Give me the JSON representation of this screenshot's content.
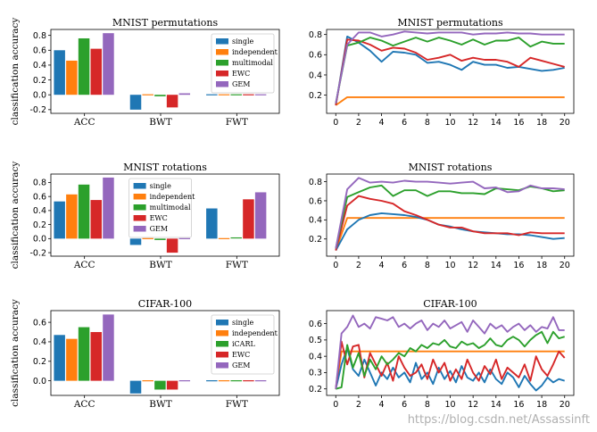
{
  "colors": {
    "single": "#1f77b4",
    "independent": "#ff7f0e",
    "multimodal": "#2ca02c",
    "ewc": "#d62728",
    "gem": "#9467bd"
  },
  "watermark": "https://blog.csdn.net/Assassinft",
  "chart_data": [
    {
      "type": "bar",
      "title": "MNIST permutations",
      "ylabel": "classification accuracy",
      "ylim": [
        -0.25,
        0.88
      ],
      "yticks": [
        "0.8",
        "0.6",
        "0.4",
        "0.2",
        "0.0",
        "-0.2"
      ],
      "categories": [
        "ACC",
        "BWT",
        "FWT"
      ],
      "legend_position": "upper right",
      "series": [
        {
          "name": "single",
          "values": [
            0.6,
            -0.2,
            0.0
          ]
        },
        {
          "name": "independent",
          "values": [
            0.46,
            0.0,
            0.0
          ]
        },
        {
          "name": "multimodal",
          "values": [
            0.76,
            -0.02,
            0.0
          ]
        },
        {
          "name": "EWC",
          "values": [
            0.62,
            -0.17,
            0.0
          ]
        },
        {
          "name": "GEM",
          "values": [
            0.83,
            0.02,
            0.0
          ]
        }
      ]
    },
    {
      "type": "line",
      "title": "MNIST permutations",
      "xlim": [
        -0.8,
        20.8
      ],
      "ylim": [
        0.02,
        0.85
      ],
      "xticks": [
        "0",
        "2",
        "4",
        "6",
        "8",
        "10",
        "12",
        "14",
        "16",
        "18",
        "20"
      ],
      "yticks": [
        "0.8",
        "0.6",
        "0.4",
        "0.2"
      ],
      "x": [
        0,
        1,
        2,
        3,
        4,
        5,
        6,
        7,
        8,
        9,
        10,
        11,
        12,
        13,
        14,
        15,
        16,
        17,
        18,
        19,
        20
      ],
      "series": [
        {
          "name": "independent",
          "values": [
            0.1,
            0.18,
            0.18,
            0.18,
            0.18,
            0.18,
            0.18,
            0.18,
            0.18,
            0.18,
            0.18,
            0.18,
            0.18,
            0.18,
            0.18,
            0.18,
            0.18,
            0.18,
            0.18,
            0.18,
            0.18
          ]
        },
        {
          "name": "single",
          "values": [
            0.1,
            0.78,
            0.72,
            0.64,
            0.53,
            0.63,
            0.62,
            0.6,
            0.52,
            0.53,
            0.5,
            0.45,
            0.53,
            0.5,
            0.5,
            0.47,
            0.48,
            0.46,
            0.44,
            0.45,
            0.47
          ]
        },
        {
          "name": "EWC",
          "values": [
            0.1,
            0.75,
            0.74,
            0.7,
            0.64,
            0.67,
            0.66,
            0.62,
            0.55,
            0.57,
            0.6,
            0.54,
            0.57,
            0.55,
            0.55,
            0.53,
            0.48,
            0.57,
            0.54,
            0.51,
            0.48
          ]
        },
        {
          "name": "multimodal",
          "values": [
            0.12,
            0.69,
            0.72,
            0.77,
            0.74,
            0.69,
            0.73,
            0.77,
            0.73,
            0.77,
            0.74,
            0.7,
            0.75,
            0.7,
            0.74,
            0.74,
            0.77,
            0.68,
            0.73,
            0.71,
            0.71
          ]
        },
        {
          "name": "GEM",
          "values": [
            0.12,
            0.7,
            0.82,
            0.82,
            0.78,
            0.8,
            0.83,
            0.82,
            0.81,
            0.82,
            0.82,
            0.82,
            0.8,
            0.81,
            0.81,
            0.82,
            0.81,
            0.81,
            0.8,
            0.8,
            0.8
          ]
        }
      ]
    },
    {
      "type": "bar",
      "title": "MNIST rotations",
      "ylabel": "classification accuracy",
      "ylim": [
        -0.25,
        0.92
      ],
      "yticks": [
        "0.8",
        "0.6",
        "0.4",
        "0.2",
        "0.0",
        "-0.2"
      ],
      "categories": [
        "ACC",
        "BWT",
        "FWT"
      ],
      "legend_position": "upper center",
      "series": [
        {
          "name": "single",
          "values": [
            0.53,
            -0.09,
            0.43
          ]
        },
        {
          "name": "independent",
          "values": [
            0.63,
            0.0,
            -0.01
          ]
        },
        {
          "name": "multimodal",
          "values": [
            0.77,
            -0.02,
            0.01
          ]
        },
        {
          "name": "EWC",
          "values": [
            0.55,
            -0.2,
            0.56
          ]
        },
        {
          "name": "GEM",
          "values": [
            0.87,
            0.0,
            0.66
          ]
        }
      ]
    },
    {
      "type": "line",
      "title": "MNIST rotations",
      "xlim": [
        -0.8,
        20.8
      ],
      "ylim": [
        0.02,
        0.88
      ],
      "xticks": [
        "0",
        "2",
        "4",
        "6",
        "8",
        "10",
        "12",
        "14",
        "16",
        "18",
        "20"
      ],
      "yticks": [
        "0.8",
        "0.6",
        "0.4",
        "0.2"
      ],
      "x": [
        0,
        1,
        2,
        3,
        4,
        5,
        6,
        7,
        8,
        9,
        10,
        11,
        12,
        13,
        14,
        15,
        16,
        17,
        18,
        19,
        20
      ],
      "series": [
        {
          "name": "independent",
          "values": [
            0.08,
            0.42,
            0.42,
            0.42,
            0.42,
            0.42,
            0.42,
            0.42,
            0.42,
            0.42,
            0.42,
            0.42,
            0.42,
            0.42,
            0.42,
            0.42,
            0.42,
            0.42,
            0.42,
            0.42,
            0.42
          ]
        },
        {
          "name": "single",
          "values": [
            0.08,
            0.3,
            0.4,
            0.45,
            0.47,
            0.46,
            0.45,
            0.43,
            0.4,
            0.35,
            0.33,
            0.3,
            0.28,
            0.27,
            0.26,
            0.25,
            0.25,
            0.24,
            0.22,
            0.2,
            0.21
          ]
        },
        {
          "name": "EWC",
          "values": [
            0.08,
            0.55,
            0.65,
            0.62,
            0.6,
            0.57,
            0.49,
            0.45,
            0.4,
            0.35,
            0.32,
            0.32,
            0.28,
            0.26,
            0.26,
            0.26,
            0.24,
            0.27,
            0.26,
            0.26,
            0.26
          ]
        },
        {
          "name": "multimodal",
          "values": [
            0.1,
            0.64,
            0.69,
            0.74,
            0.76,
            0.65,
            0.71,
            0.71,
            0.65,
            0.7,
            0.7,
            0.68,
            0.68,
            0.67,
            0.73,
            0.72,
            0.71,
            0.75,
            0.73,
            0.7,
            0.71
          ]
        },
        {
          "name": "GEM",
          "values": [
            0.1,
            0.72,
            0.84,
            0.79,
            0.8,
            0.79,
            0.81,
            0.8,
            0.8,
            0.79,
            0.78,
            0.79,
            0.8,
            0.73,
            0.74,
            0.69,
            0.7,
            0.76,
            0.73,
            0.73,
            0.72
          ]
        }
      ]
    },
    {
      "type": "bar",
      "title": "CIFAR-100",
      "ylabel": "classification accuracy",
      "ylim": [
        -0.15,
        0.72
      ],
      "yticks": [
        "0.6",
        "0.4",
        "0.2",
        "0.0"
      ],
      "categories": [
        "ACC",
        "BWT",
        "FWT"
      ],
      "legend_position": "upper right",
      "series": [
        {
          "name": "single",
          "values": [
            0.47,
            -0.13,
            0.0
          ]
        },
        {
          "name": "independent",
          "values": [
            0.43,
            0.0,
            0.0
          ]
        },
        {
          "name": "iCARL",
          "values": [
            0.55,
            -0.09,
            0.0
          ]
        },
        {
          "name": "EWC",
          "values": [
            0.5,
            -0.09,
            0.0
          ]
        },
        {
          "name": "GEM",
          "values": [
            0.68,
            0.0,
            0.0
          ]
        }
      ]
    },
    {
      "type": "line",
      "title": "CIFAR-100",
      "xlim": [
        -0.8,
        20.8
      ],
      "ylim": [
        0.16,
        0.68
      ],
      "xticks": [
        "0",
        "2",
        "4",
        "6",
        "8",
        "10",
        "12",
        "14",
        "16",
        "18",
        "20"
      ],
      "yticks": [
        "0.6",
        "0.5",
        "0.4",
        "0.3",
        "0.2"
      ],
      "x": [
        0,
        0.5,
        1,
        1.5,
        2,
        2.5,
        3,
        3.5,
        4,
        4.5,
        5,
        5.5,
        6,
        6.5,
        7,
        7.5,
        8,
        8.5,
        9,
        9.5,
        10,
        10.5,
        11,
        11.5,
        12,
        12.5,
        13,
        13.5,
        14,
        14.5,
        15,
        15.5,
        16,
        16.5,
        17,
        17.5,
        18,
        18.5,
        19,
        19.5,
        20
      ],
      "series": [
        {
          "name": "independent",
          "values": [
            0.2,
            0.43,
            0.43,
            0.43,
            0.43,
            0.43,
            0.43,
            0.43,
            0.43,
            0.43,
            0.43,
            0.43,
            0.43,
            0.43,
            0.43,
            0.43,
            0.43,
            0.43,
            0.43,
            0.43,
            0.43,
            0.43,
            0.43,
            0.43,
            0.43,
            0.43,
            0.43,
            0.43,
            0.43,
            0.43,
            0.43,
            0.43,
            0.43,
            0.43,
            0.43,
            0.43,
            0.43,
            0.43,
            0.43,
            0.43,
            0.43
          ]
        },
        {
          "name": "single",
          "values": [
            0.2,
            0.35,
            0.45,
            0.32,
            0.28,
            0.38,
            0.3,
            0.22,
            0.3,
            0.26,
            0.33,
            0.27,
            0.3,
            0.24,
            0.36,
            0.26,
            0.3,
            0.23,
            0.33,
            0.26,
            0.31,
            0.24,
            0.34,
            0.27,
            0.25,
            0.3,
            0.24,
            0.32,
            0.26,
            0.23,
            0.3,
            0.27,
            0.21,
            0.28,
            0.23,
            0.19,
            0.22,
            0.27,
            0.24,
            0.26,
            0.25
          ]
        },
        {
          "name": "EWC",
          "values": [
            0.2,
            0.49,
            0.35,
            0.46,
            0.47,
            0.27,
            0.42,
            0.35,
            0.28,
            0.36,
            0.25,
            0.4,
            0.33,
            0.28,
            0.3,
            0.35,
            0.26,
            0.38,
            0.3,
            0.36,
            0.25,
            0.32,
            0.26,
            0.38,
            0.3,
            0.25,
            0.34,
            0.29,
            0.38,
            0.26,
            0.33,
            0.3,
            0.27,
            0.35,
            0.25,
            0.4,
            0.32,
            0.28,
            0.35,
            0.43,
            0.39
          ]
        },
        {
          "name": "iCARL",
          "values": [
            0.2,
            0.21,
            0.47,
            0.33,
            0.42,
            0.28,
            0.38,
            0.32,
            0.4,
            0.35,
            0.38,
            0.42,
            0.4,
            0.45,
            0.43,
            0.47,
            0.45,
            0.48,
            0.47,
            0.5,
            0.46,
            0.45,
            0.49,
            0.47,
            0.48,
            0.45,
            0.47,
            0.51,
            0.47,
            0.46,
            0.5,
            0.52,
            0.5,
            0.46,
            0.5,
            0.53,
            0.55,
            0.48,
            0.55,
            0.51,
            0.52
          ]
        },
        {
          "name": "GEM",
          "values": [
            0.2,
            0.54,
            0.58,
            0.65,
            0.58,
            0.6,
            0.57,
            0.64,
            0.63,
            0.62,
            0.64,
            0.58,
            0.6,
            0.57,
            0.6,
            0.62,
            0.56,
            0.6,
            0.58,
            0.62,
            0.57,
            0.59,
            0.61,
            0.55,
            0.62,
            0.58,
            0.54,
            0.6,
            0.57,
            0.59,
            0.55,
            0.58,
            0.6,
            0.56,
            0.59,
            0.55,
            0.58,
            0.57,
            0.64,
            0.56,
            0.56
          ]
        }
      ]
    }
  ]
}
